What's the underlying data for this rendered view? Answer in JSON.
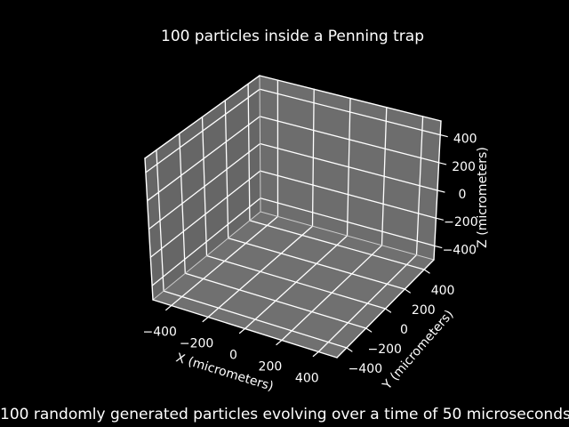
{
  "title": "100 particles inside a Penning trap",
  "caption": "100 randomly generated particles evolving over a time of 50 microseconds.",
  "chart_data": {
    "type": "scatter",
    "projection": "3d",
    "title": "100 particles inside a Penning trap",
    "points": [],
    "grid": true,
    "axes": {
      "x": {
        "label": "X (micrometers)",
        "range": [
          -500,
          500
        ],
        "ticks": [
          -400,
          -200,
          0,
          200,
          400
        ],
        "tick_labels": [
          "−400",
          "−200",
          "0",
          "200",
          "400"
        ]
      },
      "y": {
        "label": "Y (micrometers)",
        "range": [
          -500,
          500
        ],
        "ticks": [
          -400,
          -200,
          0,
          200,
          400
        ],
        "tick_labels": [
          "−400",
          "−200",
          "0",
          "200",
          "400"
        ]
      },
      "z": {
        "label": "Z (micrometers)",
        "range": [
          -500,
          500
        ],
        "ticks": [
          -400,
          -200,
          0,
          200,
          400
        ],
        "tick_labels": [
          "−400",
          "−200",
          "0",
          "200",
          "400"
        ]
      }
    },
    "colors": {
      "background": "#000000",
      "pane_left": "#666666",
      "pane_right": "#6d6d6d",
      "pane_floor": "#707070",
      "grid": "#ffffff",
      "edge": "#ffffff",
      "inner_edge": "#cccccc",
      "text": "#ffffff"
    },
    "view": {
      "note_layout_hint": "matplotlib-style 3D box, elev~30 azim~-60, z axis on right",
      "corners": {
        "A": [
          172,
          337
        ],
        "F": [
          379,
          402
        ],
        "B": [
          488,
          292
        ],
        "C": [
          293,
          238
        ],
        "LT": [
          163,
          178
        ],
        "T": [
          292,
          85
        ],
        "RT": [
          496,
          136
        ]
      }
    }
  }
}
